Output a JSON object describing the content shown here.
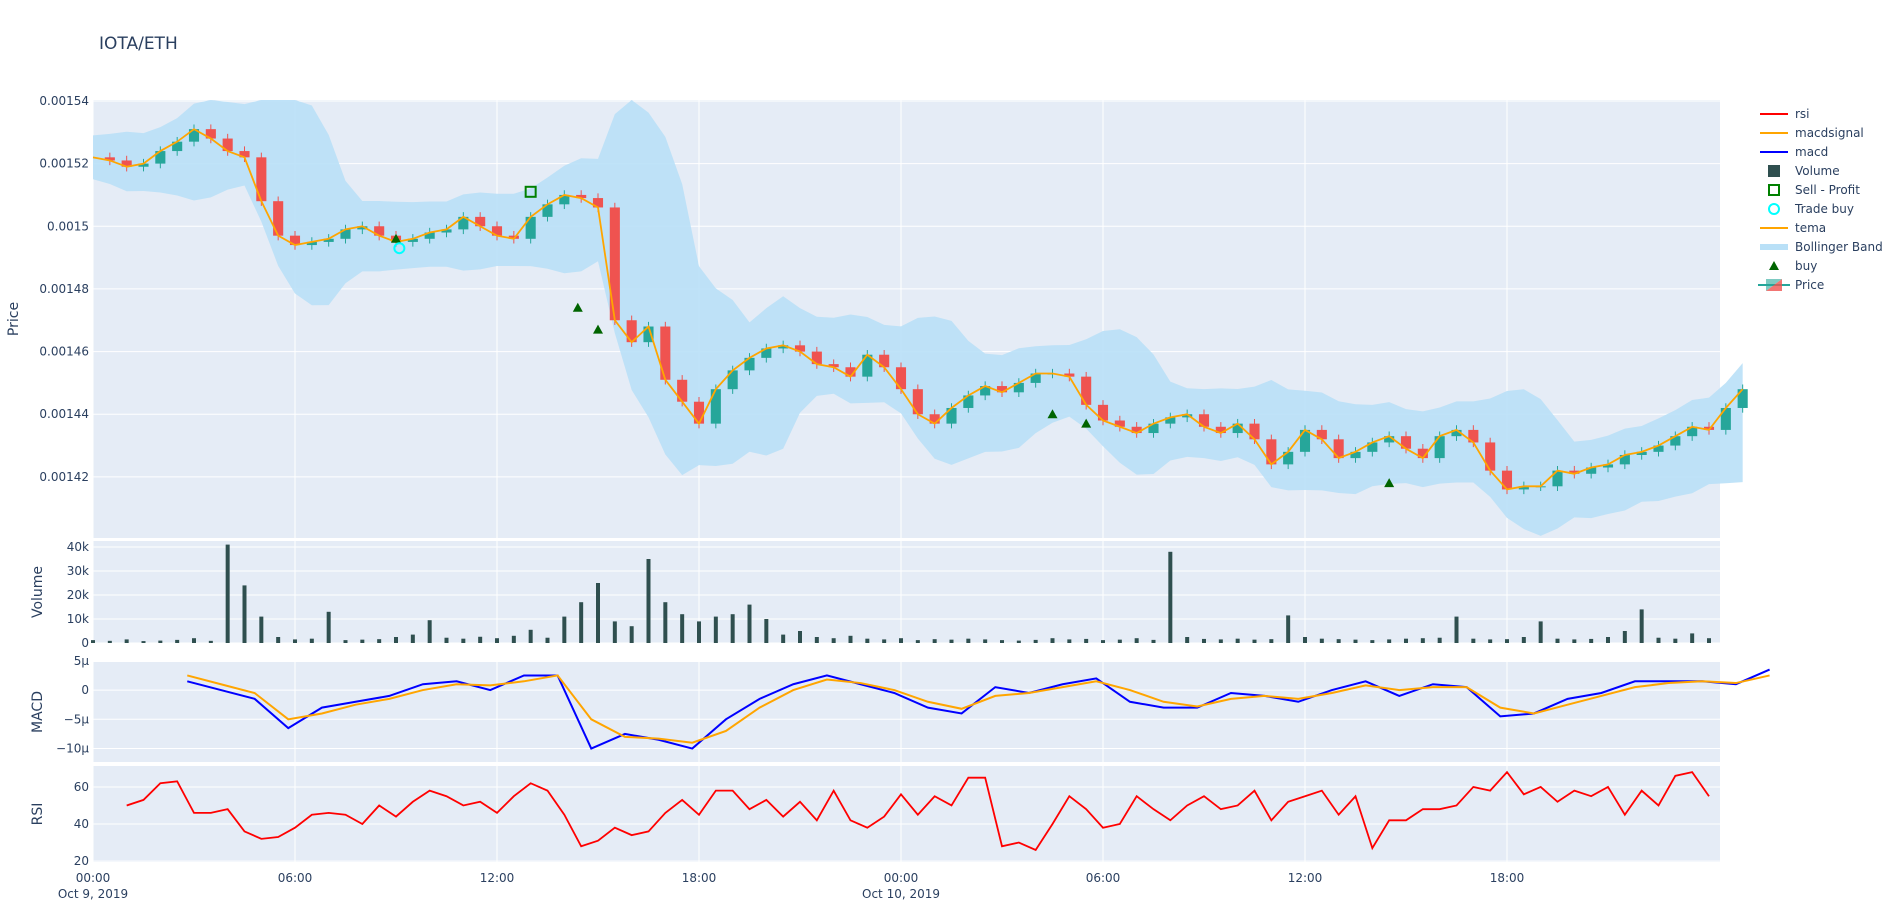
{
  "title": "IOTA/ETH",
  "colors": {
    "plot_bg": "#e5ecf6",
    "grid": "#ffffff",
    "increasing": "#26a69a",
    "decreasing": "#ef5350",
    "bb": "#b9e0f7",
    "tema": "#ffa500",
    "macd": "#0000ff",
    "macdsignal": "#ffa500",
    "rsi": "#ff0000",
    "volume": "#2f4f4f",
    "buy": "#006400",
    "sell": "#008000",
    "trade_buy": "#00ffff"
  },
  "legend": [
    "rsi",
    "macdsignal",
    "macd",
    "Volume",
    "Sell - Profit",
    "Trade buy",
    "tema",
    "Bollinger Band",
    "buy",
    "Price"
  ],
  "chart_data": [
    {
      "type": "candlestick",
      "ylabel": "Price",
      "ylim": [
        0.0014005,
        0.0015403
      ],
      "yticks": [
        "0.00154",
        "0.00152",
        "0.0015",
        "0.00148",
        "0.00146",
        "0.00144",
        "0.00142"
      ],
      "ytick_values": [
        0.00154,
        0.00152,
        0.0015,
        0.00148,
        0.00146,
        0.00144,
        0.00142
      ],
      "x_start_hour": 0,
      "x_step_hours": 0.5,
      "close": [
        0.001522,
        0.001521,
        0.001519,
        0.00152,
        0.001524,
        0.001527,
        0.001531,
        0.001528,
        0.001524,
        0.001522,
        0.001508,
        0.001497,
        0.001494,
        0.001495,
        0.001496,
        0.001499,
        0.0015,
        0.001497,
        0.001495,
        0.001496,
        0.001498,
        0.001499,
        0.001503,
        0.0015,
        0.001497,
        0.001496,
        0.001503,
        0.001507,
        0.00151,
        0.001509,
        0.001506,
        0.00147,
        0.001463,
        0.001468,
        0.001451,
        0.001444,
        0.001437,
        0.001448,
        0.001454,
        0.001458,
        0.001461,
        0.001462,
        0.00146,
        0.001456,
        0.001455,
        0.001452,
        0.001459,
        0.001455,
        0.001448,
        0.00144,
        0.001437,
        0.001442,
        0.001446,
        0.001449,
        0.001447,
        0.00145,
        0.001453,
        0.001453,
        0.001452,
        0.001443,
        0.001438,
        0.001436,
        0.001434,
        0.001437,
        0.001439,
        0.00144,
        0.001436,
        0.001434,
        0.001437,
        0.001432,
        0.001424,
        0.001428,
        0.001435,
        0.001432,
        0.001426,
        0.001428,
        0.001431,
        0.001433,
        0.001429,
        0.001426,
        0.001433,
        0.001435,
        0.001431,
        0.001422,
        0.001416,
        0.001417,
        0.001417,
        0.001422,
        0.001421,
        0.001423,
        0.001424,
        0.001427,
        0.001428,
        0.00143,
        0.001433,
        0.001436,
        0.001435,
        0.001442,
        0.001448
      ],
      "buy": [
        [
          9,
          0.001496
        ],
        [
          14.4,
          0.001474
        ],
        [
          15,
          0.001467
        ],
        [
          28.5,
          0.00144
        ],
        [
          29.5,
          0.001437
        ],
        [
          38.5,
          0.001418
        ]
      ],
      "sell_profit": [
        [
          13,
          0.001511
        ]
      ],
      "trade_buy": [
        [
          9.1,
          0.001493
        ]
      ]
    },
    {
      "type": "bar",
      "ylabel": "Volume",
      "ylim": [
        0,
        42500
      ],
      "yticks": [
        "40k",
        "30k",
        "20k",
        "10k",
        "0"
      ],
      "ytick_values": [
        40000,
        30000,
        20000,
        10000,
        0
      ],
      "x_start_hour": 0,
      "x_step_hours": 0.5,
      "values": [
        1200,
        900,
        1500,
        800,
        1000,
        1300,
        2000,
        900,
        41000,
        24000,
        11000,
        2500,
        1500,
        1800,
        13000,
        1200,
        1400,
        1600,
        2500,
        3500,
        9500,
        2200,
        1800,
        2600,
        2000,
        3000,
        5500,
        2200,
        11000,
        17000,
        25000,
        9000,
        7000,
        35000,
        17000,
        12000,
        9000,
        11000,
        12000,
        16000,
        10000,
        3500,
        5000,
        2500,
        2000,
        3000,
        1800,
        1500,
        2000,
        1200,
        1600,
        1400,
        1800,
        1500,
        1200,
        1000,
        1300,
        2000,
        1500,
        1700,
        1200,
        1400,
        2000,
        1300,
        38000,
        2500,
        1700,
        1500,
        1800,
        1400,
        1600,
        11500,
        2500,
        1800,
        1600,
        1400,
        1200,
        1500,
        1800,
        2000,
        2200,
        11000,
        1800,
        1500,
        1600,
        2500,
        9000,
        1800,
        1500,
        1700,
        2500,
        5000,
        14000,
        2200,
        1800,
        4000,
        2000
      ]
    },
    {
      "type": "line",
      "ylabel": "MACD",
      "ylim": [
        -1.23e-05,
        4.8e-06
      ],
      "yticks": [
        "5µ",
        "0",
        "−5µ",
        "−10µ"
      ],
      "ytick_values": [
        5e-06,
        0,
        -5e-06,
        -1e-05
      ],
      "x_start_hour": 2.8,
      "x_step_hours": 1,
      "series": [
        {
          "name": "macd",
          "values_micro": [
            1.5,
            0,
            -1.5,
            -6.5,
            -3,
            -2,
            -1,
            1,
            1.5,
            0,
            2.5,
            2.5,
            -10,
            -7.5,
            -8.5,
            -10,
            -5,
            -1.5,
            1,
            2.5,
            1,
            -0.5,
            -3,
            -4,
            0.5,
            -0.5,
            1,
            2,
            -2,
            -3,
            -3,
            -0.5,
            -1,
            -2,
            0,
            1.5,
            -1,
            1,
            0.5,
            -4.5,
            -4,
            -1.5,
            -0.5,
            1.5,
            1.5,
            1.5,
            1,
            3.5
          ]
        },
        {
          "name": "macdsignal",
          "values_micro": [
            2.5,
            1,
            -0.5,
            -5,
            -4,
            -2.5,
            -1.5,
            0,
            1,
            0.8,
            1.5,
            2.5,
            -5,
            -8,
            -8.3,
            -9,
            -7,
            -3,
            0,
            1.8,
            1.2,
            0,
            -2,
            -3.2,
            -1,
            -0.5,
            0.5,
            1.5,
            0,
            -2,
            -2.8,
            -1.5,
            -1,
            -1.5,
            -0.5,
            0.8,
            0,
            0.5,
            0.5,
            -3,
            -4,
            -2.5,
            -1,
            0.5,
            1.2,
            1.5,
            1.2,
            2.5
          ]
        }
      ]
    },
    {
      "type": "line",
      "ylabel": "RSI",
      "ylim": [
        19.5,
        71.3
      ],
      "yticks": [
        "60",
        "40",
        "20"
      ],
      "ytick_values": [
        60,
        40,
        20
      ],
      "x_start_hour": 1,
      "x_step_hours": 0.5,
      "series": [
        {
          "name": "rsi",
          "values": [
            50,
            53,
            62,
            63,
            46,
            46,
            48,
            36,
            32,
            33,
            38,
            45,
            46,
            45,
            40,
            50,
            44,
            52,
            58,
            55,
            50,
            52,
            46,
            55,
            62,
            58,
            45,
            28,
            31,
            38,
            34,
            36,
            46,
            53,
            45,
            58,
            58,
            48,
            53,
            44,
            52,
            42,
            58,
            42,
            38,
            44,
            56,
            45,
            55,
            50,
            65,
            65,
            28,
            30,
            26,
            40,
            55,
            48,
            38,
            40,
            55,
            48,
            42,
            50,
            55,
            48,
            50,
            58,
            42,
            52,
            55,
            58,
            45,
            55,
            27,
            42,
            42,
            48,
            48,
            50,
            60,
            58,
            68,
            56,
            60,
            52,
            58,
            55,
            60,
            45,
            58,
            50,
            66,
            68,
            55
          ]
        }
      ]
    }
  ],
  "xaxis": {
    "ticks": [
      "00:00",
      "06:00",
      "12:00",
      "18:00",
      "00:00",
      "06:00",
      "12:00",
      "18:00"
    ],
    "tick_hours": [
      0,
      6,
      12,
      18,
      24,
      30,
      36,
      42
    ],
    "dates": [
      "Oct 9, 2019",
      "Oct 10, 2019"
    ],
    "date_hours": [
      0,
      24
    ]
  }
}
